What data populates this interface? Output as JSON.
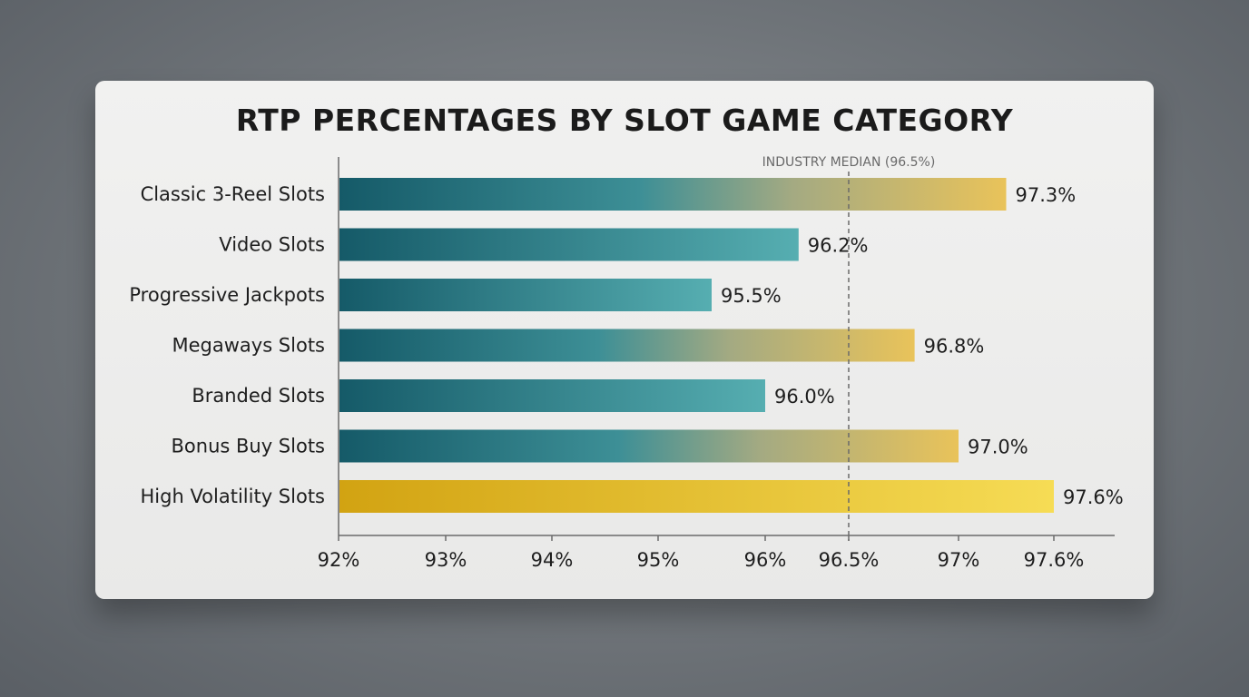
{
  "chart_data": {
    "type": "bar",
    "orientation": "horizontal",
    "title": "RTP PERCENTAGES BY SLOT GAME CATEGORY",
    "categories": [
      "Classic 3-Reel Slots",
      "Video Slots",
      "Progressive Jackpots",
      "Megaways Slots",
      "Branded Slots",
      "Bonus Buy Slots",
      "High Volatility Slots"
    ],
    "values": [
      97.3,
      96.2,
      95.5,
      96.8,
      96.0,
      97.0,
      97.6
    ],
    "value_labels": [
      "97.3%",
      "96.2%",
      "95.5%",
      "96.8%",
      "96.0%",
      "97.0%",
      "97.6%"
    ],
    "x_ticks": [
      92,
      93,
      94,
      95,
      96,
      96.5,
      97,
      97.6
    ],
    "x_tick_labels": [
      "92%",
      "93%",
      "94%",
      "95%",
      "96%",
      "96.5%",
      "97%",
      "97.6%"
    ],
    "xlim": [
      92,
      99.3
    ],
    "reference_line": {
      "value": 96.5,
      "label": "INDUSTRY MEDIAN (96.5%)",
      "style": "dashed"
    },
    "colors": {
      "teal_dark": "#155a68",
      "teal_light": "#56aeb1",
      "gold": "#e9c35a",
      "yellow_dark": "#d2a312",
      "yellow_light": "#f6dc55"
    },
    "grid": false,
    "legend": "none"
  }
}
